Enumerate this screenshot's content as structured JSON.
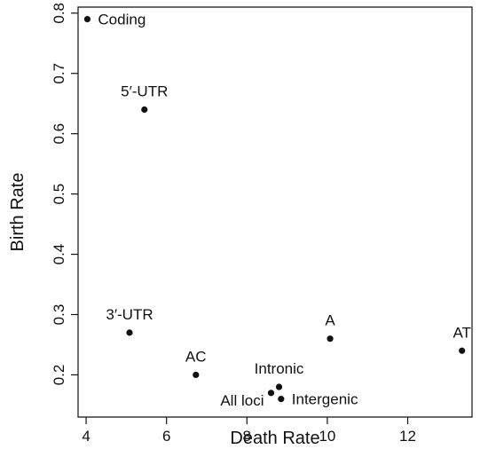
{
  "chart_data": {
    "type": "scatter",
    "title": "",
    "xlabel": "Death Rate",
    "ylabel": "Birth Rate",
    "xlim": [
      3.8,
      13.6
    ],
    "ylim": [
      0.13,
      0.81
    ],
    "xticks": [
      4,
      6,
      8,
      10,
      12
    ],
    "yticks": [
      0.2,
      0.3,
      0.4,
      0.5,
      0.6,
      0.7,
      0.8
    ],
    "xtick_labels": [
      "4",
      "6",
      "8",
      "10",
      "12"
    ],
    "ytick_labels": [
      "0.2",
      "0.3",
      "0.4",
      "0.5",
      "0.6",
      "0.7",
      "0.8"
    ],
    "grid": false,
    "legend": "none",
    "points": [
      {
        "label": "Coding",
        "x": 4.03,
        "y": 0.79,
        "label_position": "right"
      },
      {
        "label": "5′-UTR",
        "x": 5.45,
        "y": 0.64,
        "label_position": "top"
      },
      {
        "label": "3′-UTR",
        "x": 5.08,
        "y": 0.27,
        "label_position": "top"
      },
      {
        "label": "AC",
        "x": 6.73,
        "y": 0.2,
        "label_position": "top"
      },
      {
        "label": "All loci",
        "x": 8.6,
        "y": 0.17,
        "label_position": "left"
      },
      {
        "label": "Intronic",
        "x": 8.8,
        "y": 0.18,
        "label_position": "top"
      },
      {
        "label": "Intergenic",
        "x": 8.85,
        "y": 0.16,
        "label_position": "right"
      },
      {
        "label": "A",
        "x": 10.07,
        "y": 0.26,
        "label_position": "top"
      },
      {
        "label": "AT",
        "x": 13.35,
        "y": 0.24,
        "label_position": "top"
      }
    ]
  }
}
